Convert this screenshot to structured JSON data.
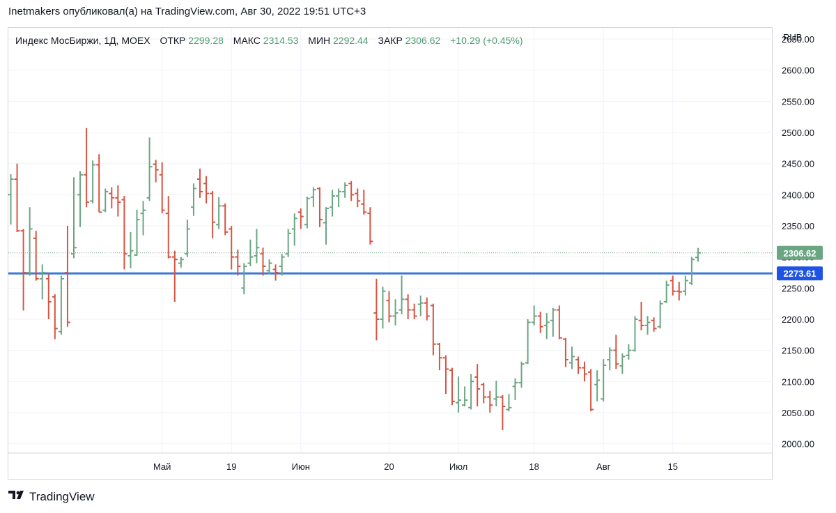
{
  "publication": "Inetmakers опубликовал(а) на TradingView.com, Авг 30, 2022 19:51 UTC+3",
  "footer_brand": "TradingView",
  "footer_logo_icon": "tradingview-logo-icon",
  "legend": {
    "symbol": "Индекс МосБиржи, 1Д, MOEX",
    "open_label": "ОТКР",
    "open_value": "2299.28",
    "high_label": "МАКС",
    "high_value": "2314.53",
    "low_label": "МИН",
    "low_value": "2292.44",
    "close_label": "ЗАКР",
    "close_value": "2306.62",
    "change": "+10.29 (+0.45%)"
  },
  "colors": {
    "up": "#6ba583",
    "down": "#d75442",
    "hline": "#3c78d8",
    "badge_last": "#6ba583",
    "badge_line": "#1e53e5",
    "grid": "#f0f3fa",
    "text": "#131722",
    "legend_value": "#4f9b72"
  },
  "chart_data": {
    "type": "ohlc",
    "currency": "RUB",
    "ylim": [
      1985,
      2668
    ],
    "yticks": [
      2000,
      2050,
      2100,
      2150,
      2200,
      2250,
      2300,
      2350,
      2400,
      2450,
      2500,
      2550,
      2600,
      2650
    ],
    "ytick_labels": [
      "2000.00",
      "2050.00",
      "2100.00",
      "2150.00",
      "2200.00",
      "2250.00",
      "2300.00",
      "2350.00",
      "2400.00",
      "2450.00",
      "2500.00",
      "2550.00",
      "2600.00",
      "2650.00"
    ],
    "xticks": [
      {
        "label": "Май",
        "bar": 24
      },
      {
        "label": "19",
        "bar": 35
      },
      {
        "label": "Июн",
        "bar": 46
      },
      {
        "label": "20",
        "bar": 60
      },
      {
        "label": "Июл",
        "bar": 71
      },
      {
        "label": "18",
        "bar": 83
      },
      {
        "label": "Авг",
        "bar": 94
      },
      {
        "label": "15",
        "bar": 105
      }
    ],
    "horizontal_line": {
      "value": 2273.61,
      "label": "2273.61"
    },
    "last_price": {
      "value": 2306.62,
      "label": "2306.62"
    },
    "grid": true,
    "bars": [
      {
        "date": "2022-03-24",
        "o": 2400,
        "h": 2433,
        "l": 2352,
        "c": 2425
      },
      {
        "date": "2022-03-25",
        "o": 2425,
        "h": 2450,
        "l": 2340,
        "c": 2342
      },
      {
        "date": "2022-03-28",
        "o": 2342,
        "h": 2345,
        "l": 2214,
        "c": 2275
      },
      {
        "date": "2022-03-29",
        "o": 2275,
        "h": 2380,
        "l": 2270,
        "c": 2345
      },
      {
        "date": "2022-03-30",
        "o": 2330,
        "h": 2342,
        "l": 2262,
        "c": 2265
      },
      {
        "date": "2022-03-31",
        "o": 2265,
        "h": 2288,
        "l": 2232,
        "c": 2275
      },
      {
        "date": "2022-04-01",
        "o": 2265,
        "h": 2272,
        "l": 2200,
        "c": 2228
      },
      {
        "date": "2022-04-04",
        "o": 2236,
        "h": 2240,
        "l": 2168,
        "c": 2185
      },
      {
        "date": "2022-04-05",
        "o": 2180,
        "h": 2270,
        "l": 2175,
        "c": 2265
      },
      {
        "date": "2022-04-06",
        "o": 2275,
        "h": 2350,
        "l": 2188,
        "c": 2195
      },
      {
        "date": "2022-04-07",
        "o": 2305,
        "h": 2428,
        "l": 2298,
        "c": 2315
      },
      {
        "date": "2022-04-08",
        "o": 2400,
        "h": 2438,
        "l": 2348,
        "c": 2432
      },
      {
        "date": "2022-04-11",
        "o": 2432,
        "h": 2507,
        "l": 2380,
        "c": 2388
      },
      {
        "date": "2022-04-12",
        "o": 2390,
        "h": 2455,
        "l": 2386,
        "c": 2448
      },
      {
        "date": "2022-04-13",
        "o": 2448,
        "h": 2465,
        "l": 2372,
        "c": 2372
      },
      {
        "date": "2022-04-14",
        "o": 2375,
        "h": 2410,
        "l": 2372,
        "c": 2405
      },
      {
        "date": "2022-04-15",
        "o": 2402,
        "h": 2412,
        "l": 2378,
        "c": 2395
      },
      {
        "date": "2022-04-18",
        "o": 2395,
        "h": 2415,
        "l": 2365,
        "c": 2388
      },
      {
        "date": "2022-04-19",
        "o": 2392,
        "h": 2398,
        "l": 2280,
        "c": 2305
      },
      {
        "date": "2022-04-20",
        "o": 2302,
        "h": 2340,
        "l": 2282,
        "c": 2310
      },
      {
        "date": "2022-04-21",
        "o": 2303,
        "h": 2376,
        "l": 2302,
        "c": 2360
      },
      {
        "date": "2022-04-22",
        "o": 2370,
        "h": 2390,
        "l": 2335,
        "c": 2375
      },
      {
        "date": "2022-04-25",
        "o": 2395,
        "h": 2492,
        "l": 2390,
        "c": 2445
      },
      {
        "date": "2022-04-26",
        "o": 2449,
        "h": 2456,
        "l": 2420,
        "c": 2440
      },
      {
        "date": "2022-04-27",
        "o": 2432,
        "h": 2452,
        "l": 2370,
        "c": 2375
      },
      {
        "date": "2022-04-28",
        "o": 2370,
        "h": 2398,
        "l": 2298,
        "c": 2300
      },
      {
        "date": "2022-04-29",
        "o": 2300,
        "h": 2310,
        "l": 2228,
        "c": 2296
      },
      {
        "date": "2022-05-04",
        "o": 2290,
        "h": 2300,
        "l": 2283,
        "c": 2296
      },
      {
        "date": "2022-05-05",
        "o": 2305,
        "h": 2360,
        "l": 2300,
        "c": 2345
      },
      {
        "date": "2022-05-06",
        "o": 2380,
        "h": 2418,
        "l": 2366,
        "c": 2410
      },
      {
        "date": "2022-05-10",
        "o": 2425,
        "h": 2442,
        "l": 2395,
        "c": 2405
      },
      {
        "date": "2022-05-11",
        "o": 2418,
        "h": 2430,
        "l": 2386,
        "c": 2402
      },
      {
        "date": "2022-05-12",
        "o": 2402,
        "h": 2406,
        "l": 2330,
        "c": 2356
      },
      {
        "date": "2022-05-13",
        "o": 2352,
        "h": 2396,
        "l": 2345,
        "c": 2382
      },
      {
        "date": "2022-05-16",
        "o": 2382,
        "h": 2386,
        "l": 2335,
        "c": 2340
      },
      {
        "date": "2022-05-17",
        "o": 2345,
        "h": 2350,
        "l": 2280,
        "c": 2300
      },
      {
        "date": "2022-05-18",
        "o": 2300,
        "h": 2312,
        "l": 2270,
        "c": 2285
      },
      {
        "date": "2022-05-19",
        "o": 2250,
        "h": 2290,
        "l": 2240,
        "c": 2285
      },
      {
        "date": "2022-05-20",
        "o": 2290,
        "h": 2328,
        "l": 2285,
        "c": 2300
      },
      {
        "date": "2022-05-23",
        "o": 2302,
        "h": 2345,
        "l": 2290,
        "c": 2315
      },
      {
        "date": "2022-05-24",
        "o": 2305,
        "h": 2315,
        "l": 2270,
        "c": 2285
      },
      {
        "date": "2022-05-25",
        "o": 2278,
        "h": 2296,
        "l": 2272,
        "c": 2290
      },
      {
        "date": "2022-05-26",
        "o": 2280,
        "h": 2288,
        "l": 2262,
        "c": 2275
      },
      {
        "date": "2022-05-27",
        "o": 2285,
        "h": 2305,
        "l": 2270,
        "c": 2300
      },
      {
        "date": "2022-05-30",
        "o": 2305,
        "h": 2345,
        "l": 2300,
        "c": 2338
      },
      {
        "date": "2022-05-31",
        "o": 2345,
        "h": 2370,
        "l": 2318,
        "c": 2362
      },
      {
        "date": "2022-06-01",
        "o": 2372,
        "h": 2378,
        "l": 2345,
        "c": 2365
      },
      {
        "date": "2022-06-02",
        "o": 2352,
        "h": 2397,
        "l": 2346,
        "c": 2394
      },
      {
        "date": "2022-06-03",
        "o": 2396,
        "h": 2412,
        "l": 2380,
        "c": 2408
      },
      {
        "date": "2022-06-06",
        "o": 2410,
        "h": 2412,
        "l": 2348,
        "c": 2360
      },
      {
        "date": "2022-06-07",
        "o": 2355,
        "h": 2380,
        "l": 2320,
        "c": 2378
      },
      {
        "date": "2022-06-08",
        "o": 2380,
        "h": 2408,
        "l": 2365,
        "c": 2398
      },
      {
        "date": "2022-06-09",
        "o": 2398,
        "h": 2410,
        "l": 2380,
        "c": 2405
      },
      {
        "date": "2022-06-10",
        "o": 2405,
        "h": 2420,
        "l": 2395,
        "c": 2415
      },
      {
        "date": "2022-06-14",
        "o": 2418,
        "h": 2422,
        "l": 2390,
        "c": 2400
      },
      {
        "date": "2022-06-15",
        "o": 2402,
        "h": 2410,
        "l": 2380,
        "c": 2390
      },
      {
        "date": "2022-06-16",
        "o": 2385,
        "h": 2408,
        "l": 2368,
        "c": 2372
      },
      {
        "date": "2022-06-17",
        "o": 2370,
        "h": 2380,
        "l": 2320,
        "c": 2325
      },
      {
        "date": "2022-06-20",
        "o": 2210,
        "h": 2265,
        "l": 2166,
        "c": 2200
      },
      {
        "date": "2022-06-21",
        "o": 2200,
        "h": 2252,
        "l": 2185,
        "c": 2245
      },
      {
        "date": "2022-06-22",
        "o": 2230,
        "h": 2245,
        "l": 2195,
        "c": 2205
      },
      {
        "date": "2022-06-23",
        "o": 2205,
        "h": 2232,
        "l": 2190,
        "c": 2210
      },
      {
        "date": "2022-06-24",
        "o": 2215,
        "h": 2270,
        "l": 2208,
        "c": 2232
      },
      {
        "date": "2022-06-27",
        "o": 2232,
        "h": 2240,
        "l": 2200,
        "c": 2215
      },
      {
        "date": "2022-06-28",
        "o": 2215,
        "h": 2225,
        "l": 2200,
        "c": 2205
      },
      {
        "date": "2022-06-29",
        "o": 2224,
        "h": 2238,
        "l": 2205,
        "c": 2226
      },
      {
        "date": "2022-06-30",
        "o": 2226,
        "h": 2235,
        "l": 2198,
        "c": 2205
      },
      {
        "date": "2022-07-01",
        "o": 2222,
        "h": 2225,
        "l": 2142,
        "c": 2160
      },
      {
        "date": "2022-07-04",
        "o": 2160,
        "h": 2162,
        "l": 2118,
        "c": 2138
      },
      {
        "date": "2022-07-05",
        "o": 2138,
        "h": 2142,
        "l": 2080,
        "c": 2120
      },
      {
        "date": "2022-07-06",
        "o": 2118,
        "h": 2122,
        "l": 2062,
        "c": 2068
      },
      {
        "date": "2022-07-07",
        "o": 2066,
        "h": 2108,
        "l": 2050,
        "c": 2070
      },
      {
        "date": "2022-07-08",
        "o": 2062,
        "h": 2092,
        "l": 2060,
        "c": 2070
      },
      {
        "date": "2022-07-11",
        "o": 2058,
        "h": 2112,
        "l": 2055,
        "c": 2100
      },
      {
        "date": "2022-07-12",
        "o": 2107,
        "h": 2128,
        "l": 2060,
        "c": 2088
      },
      {
        "date": "2022-07-13",
        "o": 2095,
        "h": 2098,
        "l": 2065,
        "c": 2075
      },
      {
        "date": "2022-07-14",
        "o": 2075,
        "h": 2085,
        "l": 2050,
        "c": 2062
      },
      {
        "date": "2022-07-15",
        "o": 2072,
        "h": 2101,
        "l": 2060,
        "c": 2075
      },
      {
        "date": "2022-07-18",
        "o": 2075,
        "h": 2078,
        "l": 2022,
        "c": 2060
      },
      {
        "date": "2022-07-19",
        "o": 2055,
        "h": 2080,
        "l": 2052,
        "c": 2058
      },
      {
        "date": "2022-07-20",
        "o": 2092,
        "h": 2105,
        "l": 2070,
        "c": 2098
      },
      {
        "date": "2022-07-21",
        "o": 2098,
        "h": 2132,
        "l": 2090,
        "c": 2128
      },
      {
        "date": "2022-07-22",
        "o": 2130,
        "h": 2200,
        "l": 2128,
        "c": 2195
      },
      {
        "date": "2022-07-25",
        "o": 2195,
        "h": 2222,
        "l": 2190,
        "c": 2205
      },
      {
        "date": "2022-07-26",
        "o": 2205,
        "h": 2212,
        "l": 2178,
        "c": 2188
      },
      {
        "date": "2022-07-27",
        "o": 2190,
        "h": 2210,
        "l": 2168,
        "c": 2195
      },
      {
        "date": "2022-07-28",
        "o": 2198,
        "h": 2218,
        "l": 2172,
        "c": 2215
      },
      {
        "date": "2022-07-29",
        "o": 2215,
        "h": 2222,
        "l": 2168,
        "c": 2170
      },
      {
        "date": "2022-08-01",
        "o": 2168,
        "h": 2170,
        "l": 2123,
        "c": 2135
      },
      {
        "date": "2022-08-02",
        "o": 2130,
        "h": 2156,
        "l": 2120,
        "c": 2140
      },
      {
        "date": "2022-08-03",
        "o": 2135,
        "h": 2140,
        "l": 2112,
        "c": 2122
      },
      {
        "date": "2022-08-04",
        "o": 2122,
        "h": 2132,
        "l": 2100,
        "c": 2112
      },
      {
        "date": "2022-08-05",
        "o": 2115,
        "h": 2120,
        "l": 2052,
        "c": 2055
      },
      {
        "date": "2022-08-08",
        "o": 2095,
        "h": 2118,
        "l": 2068,
        "c": 2102
      },
      {
        "date": "2022-08-09",
        "o": 2072,
        "h": 2136,
        "l": 2068,
        "c": 2126
      },
      {
        "date": "2022-08-10",
        "o": 2135,
        "h": 2155,
        "l": 2118,
        "c": 2150
      },
      {
        "date": "2022-08-11",
        "o": 2150,
        "h": 2175,
        "l": 2120,
        "c": 2128
      },
      {
        "date": "2022-08-12",
        "o": 2125,
        "h": 2145,
        "l": 2112,
        "c": 2140
      },
      {
        "date": "2022-08-15",
        "o": 2142,
        "h": 2160,
        "l": 2135,
        "c": 2150
      },
      {
        "date": "2022-08-16",
        "o": 2150,
        "h": 2205,
        "l": 2148,
        "c": 2200
      },
      {
        "date": "2022-08-17",
        "o": 2198,
        "h": 2228,
        "l": 2182,
        "c": 2190
      },
      {
        "date": "2022-08-18",
        "o": 2190,
        "h": 2205,
        "l": 2175,
        "c": 2195
      },
      {
        "date": "2022-08-19",
        "o": 2198,
        "h": 2203,
        "l": 2180,
        "c": 2185
      },
      {
        "date": "2022-08-22",
        "o": 2188,
        "h": 2230,
        "l": 2185,
        "c": 2225
      },
      {
        "date": "2022-08-23",
        "o": 2228,
        "h": 2262,
        "l": 2226,
        "c": 2255
      },
      {
        "date": "2022-08-24",
        "o": 2262,
        "h": 2270,
        "l": 2238,
        "c": 2245
      },
      {
        "date": "2022-08-25",
        "o": 2245,
        "h": 2260,
        "l": 2230,
        "c": 2244
      },
      {
        "date": "2022-08-26",
        "o": 2245,
        "h": 2270,
        "l": 2238,
        "c": 2262
      },
      {
        "date": "2022-08-29",
        "o": 2258,
        "h": 2300,
        "l": 2255,
        "c": 2296
      },
      {
        "date": "2022-08-30",
        "o": 2299.28,
        "h": 2314.53,
        "l": 2292.44,
        "c": 2306.62
      }
    ]
  }
}
